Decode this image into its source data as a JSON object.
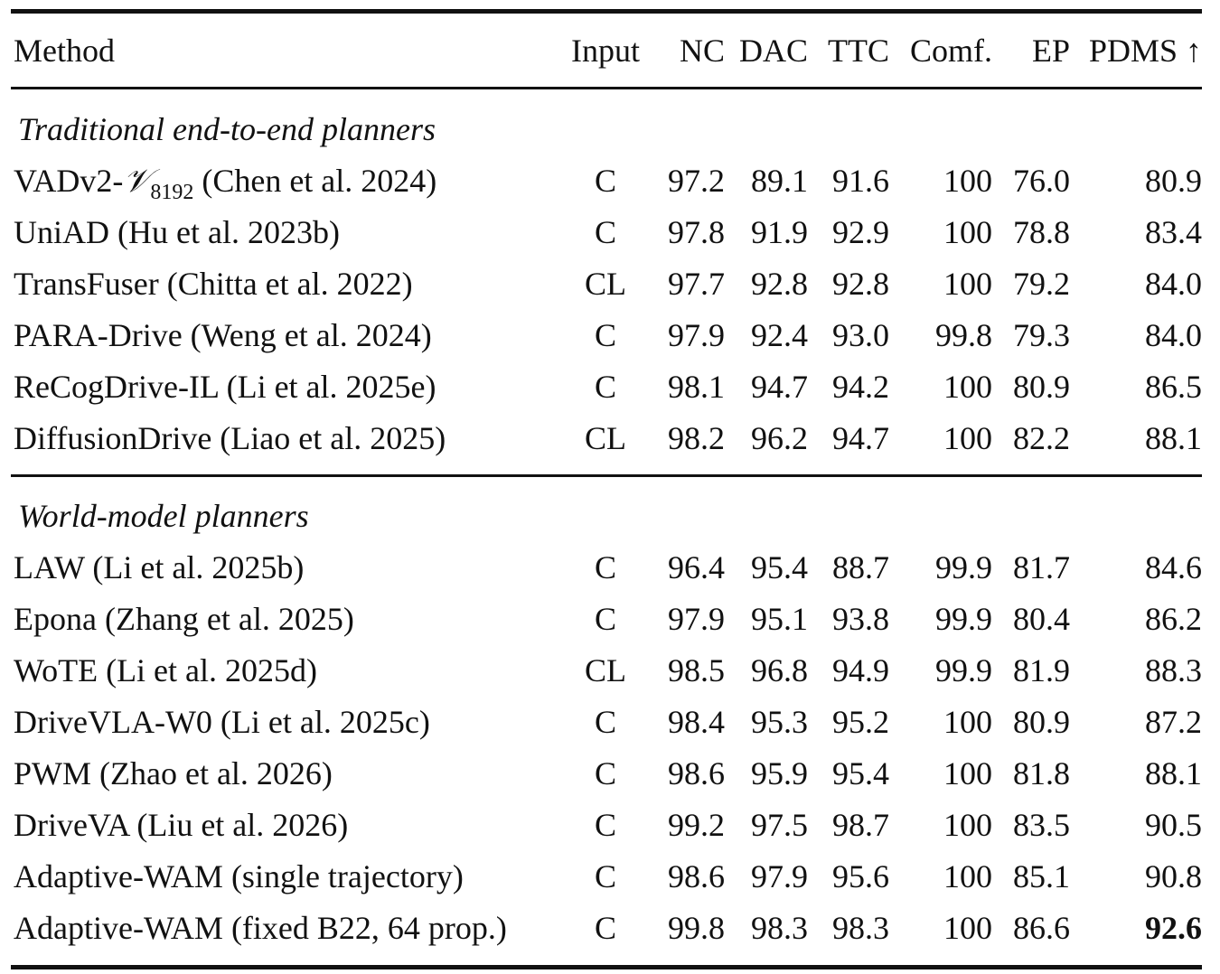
{
  "header": {
    "method": "Method",
    "input": "Input",
    "nc": "NC",
    "dac": "DAC",
    "ttc": "TTC",
    "comf": "Comf.",
    "ep": "EP",
    "pdms": "PDMS ↑"
  },
  "sections": [
    {
      "title": "Traditional end-to-end planners",
      "rows": [
        {
          "method_pre": "VADv2-",
          "method_script": "𝒱",
          "method_sub": "8192",
          "method_post": " (Chen et al. 2024)",
          "input": "C",
          "nc": "97.2",
          "dac": "89.1",
          "ttc": "91.6",
          "comf": "100",
          "ep": "76.0",
          "pdms": "80.9"
        },
        {
          "method": "UniAD (Hu et al. 2023b)",
          "input": "C",
          "nc": "97.8",
          "dac": "91.9",
          "ttc": "92.9",
          "comf": "100",
          "ep": "78.8",
          "pdms": "83.4"
        },
        {
          "method": "TransFuser (Chitta et al. 2022)",
          "input": "CL",
          "nc": "97.7",
          "dac": "92.8",
          "ttc": "92.8",
          "comf": "100",
          "ep": "79.2",
          "pdms": "84.0"
        },
        {
          "method": "PARA-Drive (Weng et al. 2024)",
          "input": "C",
          "nc": "97.9",
          "dac": "92.4",
          "ttc": "93.0",
          "comf": "99.8",
          "ep": "79.3",
          "pdms": "84.0"
        },
        {
          "method": "ReCogDrive-IL (Li et al. 2025e)",
          "input": "C",
          "nc": "98.1",
          "dac": "94.7",
          "ttc": "94.2",
          "comf": "100",
          "ep": "80.9",
          "pdms": "86.5"
        },
        {
          "method": "DiffusionDrive (Liao et al. 2025)",
          "input": "CL",
          "nc": "98.2",
          "dac": "96.2",
          "ttc": "94.7",
          "comf": "100",
          "ep": "82.2",
          "pdms": "88.1"
        }
      ]
    },
    {
      "title": "World-model planners",
      "rows": [
        {
          "method": "LAW (Li et al. 2025b)",
          "input": "C",
          "nc": "96.4",
          "dac": "95.4",
          "ttc": "88.7",
          "comf": "99.9",
          "ep": "81.7",
          "pdms": "84.6"
        },
        {
          "method": "Epona (Zhang et al. 2025)",
          "input": "C",
          "nc": "97.9",
          "dac": "95.1",
          "ttc": "93.8",
          "comf": "99.9",
          "ep": "80.4",
          "pdms": "86.2"
        },
        {
          "method": "WoTE (Li et al. 2025d)",
          "input": "CL",
          "nc": "98.5",
          "dac": "96.8",
          "ttc": "94.9",
          "comf": "99.9",
          "ep": "81.9",
          "pdms": "88.3"
        },
        {
          "method": "DriveVLA-W0 (Li et al. 2025c)",
          "input": "C",
          "nc": "98.4",
          "dac": "95.3",
          "ttc": "95.2",
          "comf": "100",
          "ep": "80.9",
          "pdms": "87.2"
        },
        {
          "method": "PWM (Zhao et al. 2026)",
          "input": "C",
          "nc": "98.6",
          "dac": "95.9",
          "ttc": "95.4",
          "comf": "100",
          "ep": "81.8",
          "pdms": "88.1"
        },
        {
          "method": "DriveVA (Liu et al. 2026)",
          "input": "C",
          "nc": "99.2",
          "dac": "97.5",
          "ttc": "98.7",
          "comf": "100",
          "ep": "83.5",
          "pdms": "90.5"
        },
        {
          "method": "Adaptive-WAM (single trajectory)",
          "input": "C",
          "nc": "98.6",
          "dac": "97.9",
          "ttc": "95.6",
          "comf": "100",
          "ep": "85.1",
          "pdms": "90.8"
        },
        {
          "method": "Adaptive-WAM (fixed B22, 64 prop.)",
          "input": "C",
          "nc": "99.8",
          "dac": "98.3",
          "ttc": "98.3",
          "comf": "100",
          "ep": "86.6",
          "pdms": "92.6"
        }
      ]
    }
  ]
}
